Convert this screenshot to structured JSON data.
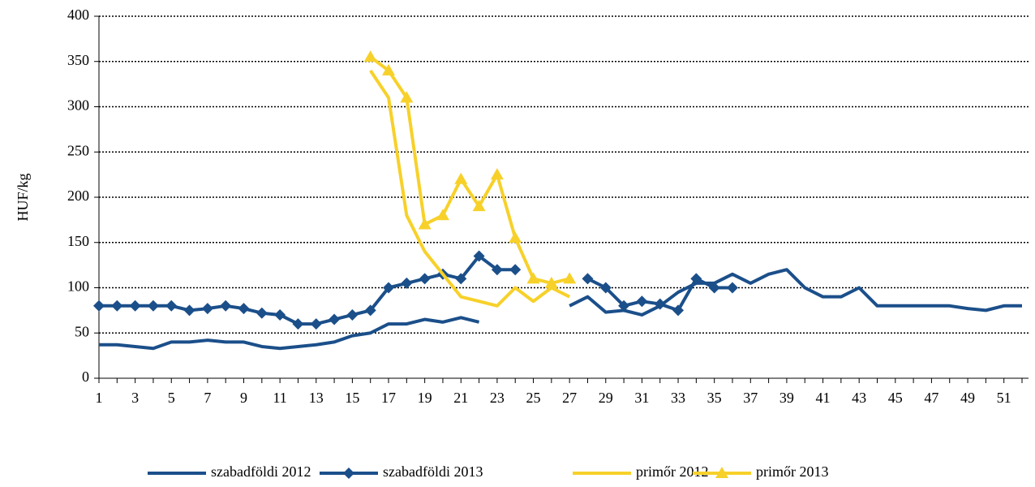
{
  "chart_data": {
    "type": "line",
    "y_label": "HUF/kg",
    "x": [
      1,
      2,
      3,
      4,
      5,
      6,
      7,
      8,
      9,
      10,
      11,
      12,
      13,
      14,
      15,
      16,
      17,
      18,
      19,
      20,
      21,
      22,
      23,
      24,
      25,
      26,
      27,
      28,
      29,
      30,
      31,
      32,
      33,
      34,
      35,
      36,
      37,
      38,
      39,
      40,
      41,
      42,
      43,
      44,
      45,
      46,
      47,
      48,
      49,
      50,
      51,
      52
    ],
    "xlim": [
      1,
      52
    ],
    "xticks": [
      1,
      3,
      5,
      7,
      9,
      11,
      13,
      15,
      17,
      19,
      21,
      23,
      25,
      27,
      29,
      31,
      33,
      35,
      37,
      39,
      41,
      43,
      45,
      47,
      49,
      51
    ],
    "ylim": [
      0,
      400
    ],
    "yticks": [
      0,
      50,
      100,
      150,
      200,
      250,
      300,
      350,
      400
    ],
    "grid": true,
    "legend": "bottom",
    "series": [
      {
        "name": "szabadföldi 2012",
        "color": "#1b4f8a",
        "marker": "none",
        "values": [
          37,
          37,
          35,
          33,
          40,
          40,
          42,
          40,
          40,
          35,
          33,
          35,
          37,
          40,
          47,
          50,
          60,
          60,
          65,
          62,
          67,
          62,
          null,
          null,
          null,
          null,
          80,
          90,
          73,
          75,
          70,
          80,
          95,
          105,
          105,
          115,
          105,
          115,
          120,
          100,
          90,
          90,
          100,
          80,
          80,
          80,
          80,
          80,
          77,
          75,
          80,
          80
        ]
      },
      {
        "name": "szabadföldi 2013",
        "color": "#1b4f8a",
        "marker": "diamond",
        "values": [
          80,
          80,
          80,
          80,
          80,
          75,
          77,
          80,
          77,
          72,
          70,
          60,
          60,
          65,
          70,
          75,
          100,
          105,
          110,
          115,
          110,
          135,
          120,
          120,
          null,
          null,
          null,
          110,
          100,
          80,
          85,
          82,
          75,
          110,
          100,
          100,
          null,
          null,
          null,
          null,
          null,
          null,
          null,
          null,
          null,
          null,
          null,
          null,
          null,
          null,
          null,
          null
        ]
      },
      {
        "name": "primőr 2012",
        "color": "#f7d12a",
        "marker": "none",
        "values": [
          null,
          null,
          null,
          null,
          null,
          null,
          null,
          null,
          null,
          null,
          null,
          null,
          null,
          null,
          null,
          340,
          310,
          180,
          140,
          115,
          90,
          85,
          80,
          100,
          85,
          100,
          90,
          null,
          null,
          null,
          null,
          null,
          null,
          null,
          null,
          null,
          null,
          null,
          null,
          null,
          null,
          null,
          null,
          null,
          null,
          null,
          null,
          null,
          null,
          null,
          null,
          null
        ]
      },
      {
        "name": "primőr 2013",
        "color": "#f7d12a",
        "marker": "triangle",
        "values": [
          null,
          null,
          null,
          null,
          null,
          null,
          null,
          null,
          null,
          null,
          null,
          null,
          null,
          null,
          null,
          355,
          340,
          310,
          170,
          180,
          220,
          190,
          225,
          155,
          110,
          105,
          110,
          null,
          null,
          null,
          null,
          null,
          null,
          null,
          null,
          null,
          null,
          null,
          null,
          null,
          null,
          null,
          null,
          null,
          null,
          null,
          null,
          null,
          null,
          null,
          null,
          null
        ]
      }
    ]
  }
}
